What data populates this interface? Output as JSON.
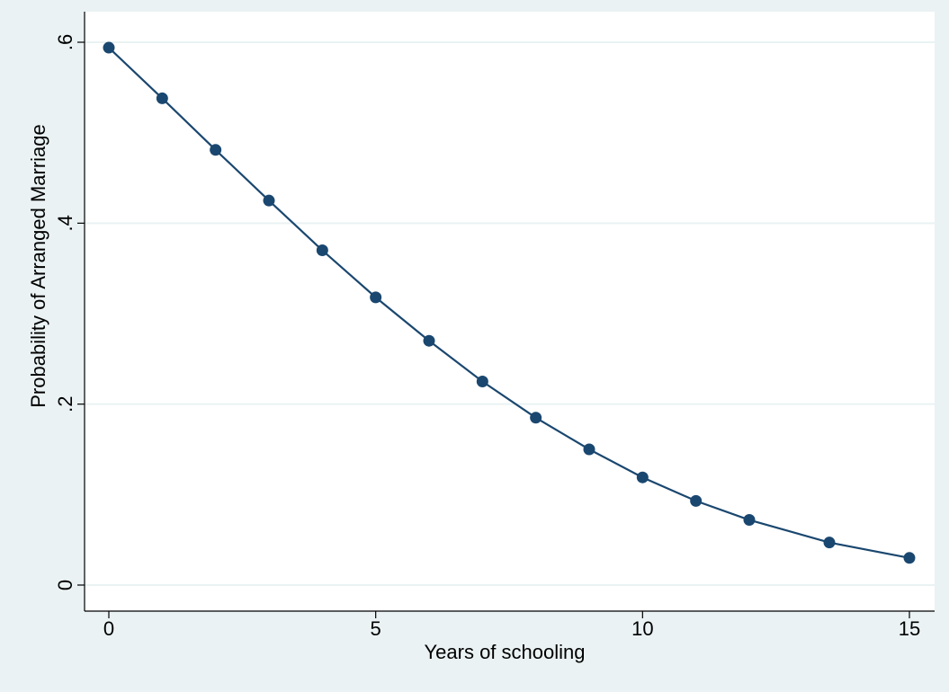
{
  "chart_data": {
    "type": "line",
    "title": "",
    "xlabel": "Years of schooling",
    "ylabel": "Probability of Arranged Marriage",
    "xlim": [
      0,
      15
    ],
    "ylim": [
      0,
      0.6
    ],
    "x_ticks": [
      0,
      5,
      10,
      15
    ],
    "x_tick_labels": [
      "0",
      "5",
      "10",
      "15"
    ],
    "y_ticks": [
      0,
      0.2,
      0.4,
      0.6
    ],
    "y_tick_labels": [
      "0",
      ".2",
      ".4",
      ".6"
    ],
    "grid": "horizontal",
    "series": [
      {
        "x": [
          0,
          1,
          2,
          3,
          4,
          5,
          6,
          7,
          8,
          9,
          10,
          11,
          12,
          13.5,
          15
        ],
        "values": [
          0.594,
          0.538,
          0.481,
          0.425,
          0.37,
          0.318,
          0.27,
          0.225,
          0.185,
          0.15,
          0.119,
          0.093,
          0.072,
          0.047,
          0.03
        ]
      }
    ],
    "colors": {
      "background": "#eaf2f3",
      "plot_area": "#ffffff",
      "gridline": "#eaf2f3",
      "series": "#1a476f"
    }
  }
}
